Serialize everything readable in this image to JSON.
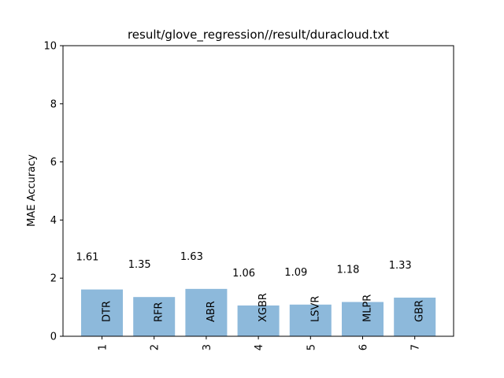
{
  "chart_data": {
    "type": "bar",
    "title": "result/glove_regression//result/duracloud.txt",
    "xlabel": "",
    "ylabel": "MAE Accuracy",
    "ylim": [
      0,
      10
    ],
    "yticks": [
      "0",
      "2",
      "4",
      "6",
      "8",
      "10"
    ],
    "categories": [
      "1",
      "2",
      "3",
      "4",
      "5",
      "6",
      "7"
    ],
    "bar_names": [
      "DTR",
      "RFR",
      "ABR",
      "XGBR",
      "LSVR",
      "MLPR",
      "GBR"
    ],
    "values": [
      1.61,
      1.35,
      1.63,
      1.06,
      1.09,
      1.18,
      1.33
    ],
    "value_labels": [
      "1.61",
      "1.35",
      "1.63",
      "1.06",
      "1.09",
      "1.18",
      "1.33"
    ],
    "bar_color": "#8db9db",
    "grid": false,
    "legend": "none"
  }
}
